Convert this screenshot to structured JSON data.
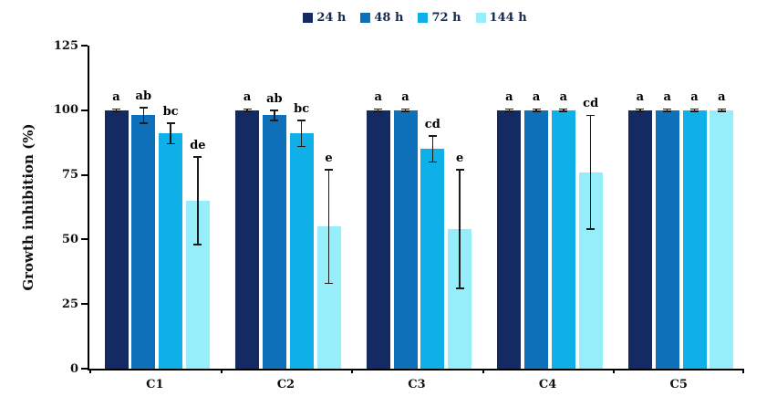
{
  "figure": {
    "background": "#ffffff",
    "axis_color": "#000000",
    "text_color": "#111111",
    "legend_text_color": "#17294f"
  },
  "chart_data": {
    "type": "bar",
    "title": "",
    "xlabel": "",
    "ylabel": "Growth inhibition (%)",
    "ylim": [
      0,
      125
    ],
    "yticks": [
      0,
      25,
      50,
      75,
      100,
      125
    ],
    "grid": "off",
    "legend_position": "top-center",
    "categories": [
      "C1",
      "C2",
      "C3",
      "C4",
      "C5"
    ],
    "series": [
      {
        "name": "24 h",
        "color": "#132a63",
        "values": [
          100,
          100,
          100,
          100,
          100
        ],
        "errors": [
          0.5,
          0.5,
          0.5,
          0.5,
          0.5
        ],
        "letters": [
          "a",
          "a",
          "a",
          "a",
          "a"
        ]
      },
      {
        "name": "48 h",
        "color": "#0d70b8",
        "values": [
          98,
          98,
          100,
          100,
          100
        ],
        "errors": [
          3,
          2,
          0.5,
          0.5,
          0.5
        ],
        "letters": [
          "ab",
          "ab",
          "a",
          "a",
          "a"
        ]
      },
      {
        "name": "72 h",
        "color": "#0fafe8",
        "values": [
          91,
          91,
          85,
          100,
          100
        ],
        "errors": [
          4,
          5,
          5,
          0.5,
          0.5
        ],
        "letters": [
          "bc",
          "bc",
          "cd",
          "a",
          "a"
        ]
      },
      {
        "name": "144 h",
        "color": "#97eefb",
        "values": [
          65,
          55,
          54,
          76,
          100
        ],
        "errors": [
          17,
          22,
          23,
          22,
          0.5
        ],
        "letters": [
          "de",
          "e",
          "e",
          "cd",
          "a"
        ]
      }
    ]
  }
}
